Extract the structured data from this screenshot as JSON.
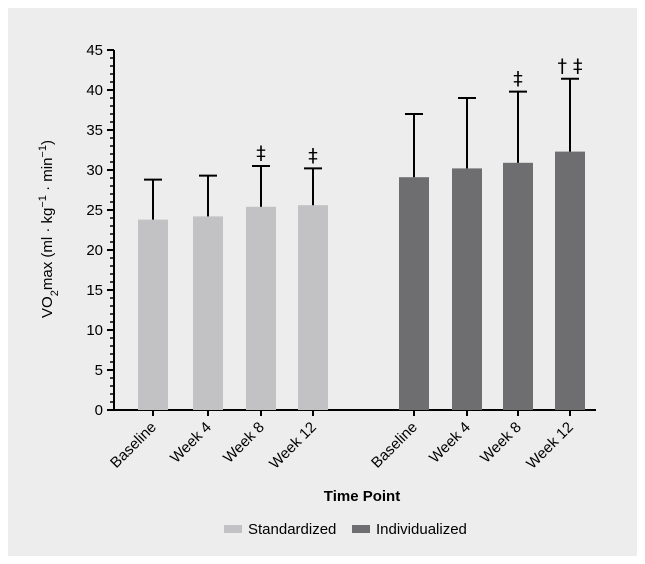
{
  "chart_data": {
    "type": "bar",
    "title": "",
    "xlabel": "Time Point",
    "ylabel_parts": [
      "VO",
      "2",
      "max (ml · kg",
      "−1",
      " · min",
      "−1",
      ")"
    ],
    "ylim": [
      0,
      45
    ],
    "yticks": [
      0,
      5,
      10,
      15,
      20,
      25,
      30,
      35,
      40,
      45
    ],
    "grid": false,
    "legend_position": "bottom-center",
    "series": [
      {
        "name": "Standardized",
        "color": "#c2c2c4",
        "categories": [
          "Baseline",
          "Week 4",
          "Week 8",
          "Week 12"
        ],
        "values": [
          23.8,
          24.2,
          25.4,
          25.6
        ],
        "error_upper": [
          28.8,
          29.3,
          30.5,
          30.2
        ],
        "markers": [
          "",
          "",
          "‡",
          "‡"
        ]
      },
      {
        "name": "Individualized",
        "color": "#6e6e70",
        "categories": [
          "Baseline",
          "Week 4",
          "Week 8",
          "Week 12"
        ],
        "values": [
          29.1,
          30.2,
          30.9,
          32.3
        ],
        "error_upper": [
          37.0,
          39.0,
          39.8,
          41.4
        ],
        "markers": [
          "",
          "",
          "‡",
          "† ‡"
        ]
      }
    ]
  }
}
